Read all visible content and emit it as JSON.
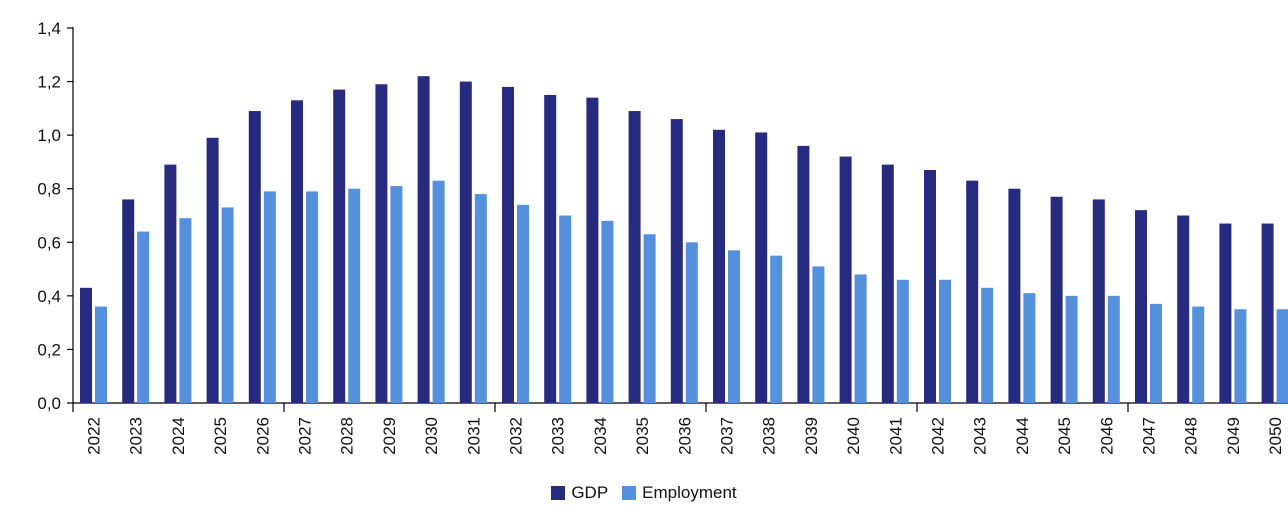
{
  "chart_data": {
    "type": "bar",
    "title": "",
    "xlabel": "",
    "ylabel": "",
    "ylim": [
      0,
      1.4
    ],
    "yticks": [
      "0,0",
      "0,2",
      "0,4",
      "0,6",
      "0,8",
      "1,0",
      "1,2",
      "1,4"
    ],
    "grid": false,
    "legend_position": "bottom",
    "categories": [
      "2022",
      "2023",
      "2024",
      "2025",
      "2026",
      "2027",
      "2028",
      "2029",
      "2030",
      "2031",
      "2032",
      "2033",
      "2034",
      "2035",
      "2036",
      "2037",
      "2038",
      "2039",
      "2040",
      "2041",
      "2042",
      "2043",
      "2044",
      "2045",
      "2046",
      "2047",
      "2048",
      "2049",
      "2050"
    ],
    "series": [
      {
        "name": "GDP",
        "color": "#262B7F",
        "values": [
          0.43,
          0.76,
          0.89,
          0.99,
          1.09,
          1.13,
          1.17,
          1.19,
          1.22,
          1.2,
          1.18,
          1.15,
          1.14,
          1.09,
          1.06,
          1.02,
          1.01,
          0.96,
          0.92,
          0.89,
          0.87,
          0.83,
          0.8,
          0.77,
          0.76,
          0.72,
          0.7,
          0.67,
          0.67
        ]
      },
      {
        "name": "Employment",
        "color": "#5590DC",
        "values": [
          0.36,
          0.64,
          0.69,
          0.73,
          0.79,
          0.79,
          0.8,
          0.81,
          0.83,
          0.78,
          0.74,
          0.7,
          0.68,
          0.63,
          0.6,
          0.57,
          0.55,
          0.51,
          0.48,
          0.46,
          0.46,
          0.43,
          0.41,
          0.4,
          0.4,
          0.37,
          0.36,
          0.35,
          0.35
        ]
      }
    ]
  }
}
